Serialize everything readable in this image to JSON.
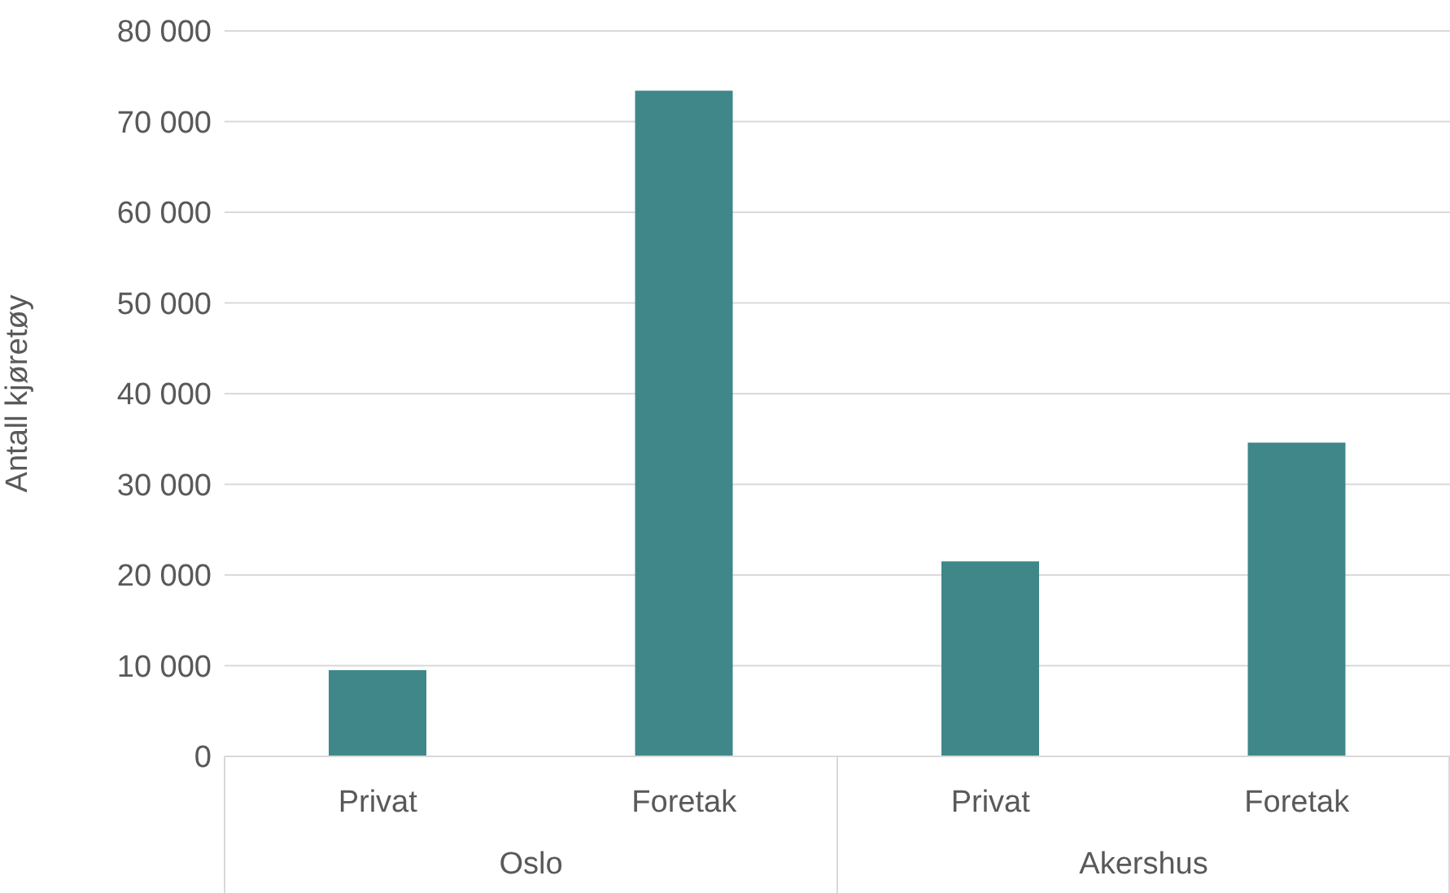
{
  "chart_data": {
    "type": "bar",
    "ylabel": "Antall kjøretøy",
    "categories": [
      "Privat",
      "Foretak",
      "Privat",
      "Foretak"
    ],
    "values": [
      9500,
      73400,
      21500,
      34600
    ],
    "color": "#408789",
    "ylim": [
      0,
      80000
    ],
    "yticks": [
      {
        "value": 0,
        "label": "0"
      },
      {
        "value": 10000,
        "label": "10 000"
      },
      {
        "value": 20000,
        "label": "20 000"
      },
      {
        "value": 30000,
        "label": "30 000"
      },
      {
        "value": 40000,
        "label": "40 000"
      },
      {
        "value": 50000,
        "label": "50 000"
      },
      {
        "value": 60000,
        "label": "60 000"
      },
      {
        "value": 70000,
        "label": "70 000"
      },
      {
        "value": 80000,
        "label": "80 000"
      }
    ],
    "grid": "y",
    "legend": false,
    "annotations": [
      "Oslo",
      "Akershus"
    ]
  }
}
